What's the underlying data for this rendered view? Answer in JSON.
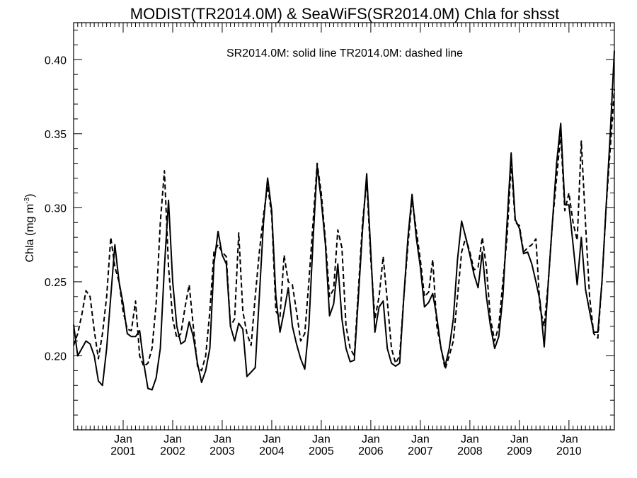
{
  "chart_data": {
    "type": "line",
    "title": "MODIST(TR2014.0M) & SeaWiFS(SR2014.0M)  Chla for shsst",
    "legend_text": "SR2014.0M: solid line   TR2014.0M: dashed line",
    "legend_placement": "top-center",
    "ylabel_main": "Chla (mg m",
    "ylabel_sup": "-3",
    "ylabel_end": ")",
    "xlabel": "",
    "grid": false,
    "x_range": [
      "2000-01",
      "2010-12"
    ],
    "ylim": [
      0.15,
      0.425
    ],
    "y_ticks": [
      {
        "value": 0.2,
        "label": "0.20"
      },
      {
        "value": 0.25,
        "label": "0.25"
      },
      {
        "value": 0.3,
        "label": "0.30"
      },
      {
        "value": 0.35,
        "label": "0.35"
      },
      {
        "value": 0.4,
        "label": "0.40"
      }
    ],
    "x_ticks": [
      {
        "date": "2001-01",
        "month_label": "Jan",
        "year_label": "2001"
      },
      {
        "date": "2002-01",
        "month_label": "Jan",
        "year_label": "2002"
      },
      {
        "date": "2003-01",
        "month_label": "Jan",
        "year_label": "2003"
      },
      {
        "date": "2004-01",
        "month_label": "Jan",
        "year_label": "2004"
      },
      {
        "date": "2005-01",
        "month_label": "Jan",
        "year_label": "2005"
      },
      {
        "date": "2006-01",
        "month_label": "Jan",
        "year_label": "2006"
      },
      {
        "date": "2007-01",
        "month_label": "Jan",
        "year_label": "2007"
      },
      {
        "date": "2008-01",
        "month_label": "Jan",
        "year_label": "2008"
      },
      {
        "date": "2009-01",
        "month_label": "Jan",
        "year_label": "2009"
      },
      {
        "date": "2010-01",
        "month_label": "Jan",
        "year_label": "2010"
      }
    ],
    "series": [
      {
        "key": "SR2014.0M",
        "style": "solid",
        "color": "#000000",
        "points": [
          [
            "2000-01",
            0.221
          ],
          [
            "2000-02",
            0.2
          ],
          [
            "2000-03",
            0.205
          ],
          [
            "2000-04",
            0.21
          ],
          [
            "2000-05",
            0.208
          ],
          [
            "2000-06",
            0.2
          ],
          [
            "2000-07",
            0.183
          ],
          [
            "2000-08",
            0.18
          ],
          [
            "2000-09",
            0.205
          ],
          [
            "2000-10",
            0.24
          ],
          [
            "2000-11",
            0.275
          ],
          [
            "2000-12",
            0.25
          ],
          [
            "2001-01",
            0.235
          ],
          [
            "2001-02",
            0.215
          ],
          [
            "2001-03",
            0.213
          ],
          [
            "2001-04",
            0.213
          ],
          [
            "2001-05",
            0.217
          ],
          [
            "2001-06",
            0.195
          ],
          [
            "2001-07",
            0.178
          ],
          [
            "2001-08",
            0.177
          ],
          [
            "2001-09",
            0.185
          ],
          [
            "2001-10",
            0.205
          ],
          [
            "2001-11",
            0.26
          ],
          [
            "2001-12",
            0.305
          ],
          [
            "2002-01",
            0.25
          ],
          [
            "2002-02",
            0.22
          ],
          [
            "2002-03",
            0.208
          ],
          [
            "2002-04",
            0.21
          ],
          [
            "2002-05",
            0.223
          ],
          [
            "2002-06",
            0.213
          ],
          [
            "2002-07",
            0.195
          ],
          [
            "2002-08",
            0.182
          ],
          [
            "2002-09",
            0.19
          ],
          [
            "2002-10",
            0.205
          ],
          [
            "2002-11",
            0.262
          ],
          [
            "2002-12",
            0.284
          ],
          [
            "2003-01",
            0.268
          ],
          [
            "2003-02",
            0.262
          ],
          [
            "2003-03",
            0.22
          ],
          [
            "2003-04",
            0.21
          ],
          [
            "2003-05",
            0.222
          ],
          [
            "2003-06",
            0.218
          ],
          [
            "2003-07",
            0.186
          ],
          [
            "2003-08",
            0.189
          ],
          [
            "2003-09",
            0.192
          ],
          [
            "2003-10",
            0.24
          ],
          [
            "2003-11",
            0.29
          ],
          [
            "2003-12",
            0.32
          ],
          [
            "2004-01",
            0.298
          ],
          [
            "2004-02",
            0.24
          ],
          [
            "2004-03",
            0.216
          ],
          [
            "2004-04",
            0.23
          ],
          [
            "2004-05",
            0.246
          ],
          [
            "2004-06",
            0.22
          ],
          [
            "2004-07",
            0.208
          ],
          [
            "2004-08",
            0.198
          ],
          [
            "2004-09",
            0.191
          ],
          [
            "2004-10",
            0.22
          ],
          [
            "2004-11",
            0.278
          ],
          [
            "2004-12",
            0.328
          ],
          [
            "2005-01",
            0.305
          ],
          [
            "2005-02",
            0.275
          ],
          [
            "2005-03",
            0.227
          ],
          [
            "2005-04",
            0.235
          ],
          [
            "2005-05",
            0.262
          ],
          [
            "2005-06",
            0.225
          ],
          [
            "2005-07",
            0.205
          ],
          [
            "2005-08",
            0.196
          ],
          [
            "2005-09",
            0.197
          ],
          [
            "2005-10",
            0.24
          ],
          [
            "2005-11",
            0.285
          ],
          [
            "2005-12",
            0.323
          ],
          [
            "2006-01",
            0.27
          ],
          [
            "2006-02",
            0.216
          ],
          [
            "2006-03",
            0.233
          ],
          [
            "2006-04",
            0.237
          ],
          [
            "2006-05",
            0.205
          ],
          [
            "2006-06",
            0.195
          ],
          [
            "2006-07",
            0.193
          ],
          [
            "2006-08",
            0.195
          ],
          [
            "2006-09",
            0.24
          ],
          [
            "2006-10",
            0.28
          ],
          [
            "2006-11",
            0.309
          ],
          [
            "2006-12",
            0.28
          ],
          [
            "2007-01",
            0.26
          ],
          [
            "2007-02",
            0.233
          ],
          [
            "2007-03",
            0.236
          ],
          [
            "2007-04",
            0.242
          ],
          [
            "2007-05",
            0.226
          ],
          [
            "2007-06",
            0.205
          ],
          [
            "2007-07",
            0.193
          ],
          [
            "2007-08",
            0.205
          ],
          [
            "2007-09",
            0.225
          ],
          [
            "2007-10",
            0.265
          ],
          [
            "2007-11",
            0.291
          ],
          [
            "2007-12",
            0.28
          ],
          [
            "2008-01",
            0.268
          ],
          [
            "2008-02",
            0.255
          ],
          [
            "2008-03",
            0.246
          ],
          [
            "2008-04",
            0.27
          ],
          [
            "2008-05",
            0.24
          ],
          [
            "2008-06",
            0.22
          ],
          [
            "2008-07",
            0.205
          ],
          [
            "2008-08",
            0.213
          ],
          [
            "2008-09",
            0.24
          ],
          [
            "2008-10",
            0.29
          ],
          [
            "2008-11",
            0.337
          ],
          [
            "2008-12",
            0.292
          ],
          [
            "2009-01",
            0.286
          ],
          [
            "2009-02",
            0.269
          ],
          [
            "2009-03",
            0.27
          ],
          [
            "2009-04",
            0.262
          ],
          [
            "2009-05",
            0.25
          ],
          [
            "2009-06",
            0.237
          ],
          [
            "2009-07",
            0.206
          ],
          [
            "2009-08",
            0.25
          ],
          [
            "2009-09",
            0.29
          ],
          [
            "2009-10",
            0.33
          ],
          [
            "2009-11",
            0.357
          ],
          [
            "2009-12",
            0.302
          ],
          [
            "2010-01",
            0.302
          ],
          [
            "2010-02",
            0.275
          ],
          [
            "2010-03",
            0.248
          ],
          [
            "2010-04",
            0.28
          ],
          [
            "2010-05",
            0.245
          ],
          [
            "2010-06",
            0.23
          ],
          [
            "2010-07",
            0.216
          ],
          [
            "2010-08",
            0.216
          ],
          [
            "2010-09",
            0.25
          ],
          [
            "2010-10",
            0.3
          ],
          [
            "2010-11",
            0.35
          ],
          [
            "2010-12",
            0.406
          ]
        ]
      },
      {
        "key": "TR2014.0M",
        "style": "dashed",
        "color": "#000000",
        "points": [
          [
            "2000-01",
            0.207
          ],
          [
            "2000-02",
            0.215
          ],
          [
            "2000-03",
            0.228
          ],
          [
            "2000-04",
            0.244
          ],
          [
            "2000-05",
            0.24
          ],
          [
            "2000-06",
            0.217
          ],
          [
            "2000-07",
            0.198
          ],
          [
            "2000-08",
            0.215
          ],
          [
            "2000-09",
            0.24
          ],
          [
            "2000-10",
            0.28
          ],
          [
            "2000-11",
            0.26
          ],
          [
            "2000-12",
            0.25
          ],
          [
            "2001-01",
            0.23
          ],
          [
            "2001-02",
            0.218
          ],
          [
            "2001-03",
            0.217
          ],
          [
            "2001-04",
            0.237
          ],
          [
            "2001-05",
            0.2
          ],
          [
            "2001-06",
            0.193
          ],
          [
            "2001-07",
            0.195
          ],
          [
            "2001-08",
            0.205
          ],
          [
            "2001-09",
            0.235
          ],
          [
            "2001-10",
            0.29
          ],
          [
            "2001-11",
            0.325
          ],
          [
            "2001-12",
            0.26
          ],
          [
            "2002-01",
            0.225
          ],
          [
            "2002-02",
            0.212
          ],
          [
            "2002-03",
            0.215
          ],
          [
            "2002-04",
            0.233
          ],
          [
            "2002-05",
            0.248
          ],
          [
            "2002-06",
            0.22
          ],
          [
            "2002-07",
            0.193
          ],
          [
            "2002-08",
            0.19
          ],
          [
            "2002-09",
            0.2
          ],
          [
            "2002-10",
            0.23
          ],
          [
            "2002-11",
            0.27
          ],
          [
            "2002-12",
            0.275
          ],
          [
            "2003-01",
            0.27
          ],
          [
            "2003-02",
            0.267
          ],
          [
            "2003-03",
            0.22
          ],
          [
            "2003-04",
            0.225
          ],
          [
            "2003-05",
            0.283
          ],
          [
            "2003-06",
            0.23
          ],
          [
            "2003-07",
            0.215
          ],
          [
            "2003-08",
            0.207
          ],
          [
            "2003-09",
            0.24
          ],
          [
            "2003-10",
            0.27
          ],
          [
            "2003-11",
            0.295
          ],
          [
            "2003-12",
            0.315
          ],
          [
            "2004-01",
            0.295
          ],
          [
            "2004-02",
            0.23
          ],
          [
            "2004-03",
            0.226
          ],
          [
            "2004-04",
            0.268
          ],
          [
            "2004-05",
            0.25
          ],
          [
            "2004-06",
            0.248
          ],
          [
            "2004-07",
            0.23
          ],
          [
            "2004-08",
            0.21
          ],
          [
            "2004-09",
            0.215
          ],
          [
            "2004-10",
            0.25
          ],
          [
            "2004-11",
            0.29
          ],
          [
            "2004-12",
            0.33
          ],
          [
            "2005-01",
            0.31
          ],
          [
            "2005-02",
            0.278
          ],
          [
            "2005-03",
            0.24
          ],
          [
            "2005-04",
            0.245
          ],
          [
            "2005-05",
            0.285
          ],
          [
            "2005-06",
            0.273
          ],
          [
            "2005-07",
            0.22
          ],
          [
            "2005-08",
            0.205
          ],
          [
            "2005-09",
            0.2
          ],
          [
            "2005-10",
            0.245
          ],
          [
            "2005-11",
            0.29
          ],
          [
            "2005-12",
            0.318
          ],
          [
            "2006-01",
            0.265
          ],
          [
            "2006-02",
            0.225
          ],
          [
            "2006-03",
            0.24
          ],
          [
            "2006-04",
            0.267
          ],
          [
            "2006-05",
            0.237
          ],
          [
            "2006-06",
            0.205
          ],
          [
            "2006-07",
            0.195
          ],
          [
            "2006-08",
            0.2
          ],
          [
            "2006-09",
            0.24
          ],
          [
            "2006-10",
            0.275
          ],
          [
            "2006-11",
            0.306
          ],
          [
            "2006-12",
            0.285
          ],
          [
            "2007-01",
            0.265
          ],
          [
            "2007-02",
            0.24
          ],
          [
            "2007-03",
            0.243
          ],
          [
            "2007-04",
            0.265
          ],
          [
            "2007-05",
            0.22
          ],
          [
            "2007-06",
            0.205
          ],
          [
            "2007-07",
            0.191
          ],
          [
            "2007-08",
            0.2
          ],
          [
            "2007-09",
            0.21
          ],
          [
            "2007-10",
            0.24
          ],
          [
            "2007-11",
            0.27
          ],
          [
            "2007-12",
            0.28
          ],
          [
            "2008-01",
            0.27
          ],
          [
            "2008-02",
            0.258
          ],
          [
            "2008-03",
            0.26
          ],
          [
            "2008-04",
            0.28
          ],
          [
            "2008-05",
            0.26
          ],
          [
            "2008-06",
            0.225
          ],
          [
            "2008-07",
            0.21
          ],
          [
            "2008-08",
            0.22
          ],
          [
            "2008-09",
            0.25
          ],
          [
            "2008-10",
            0.28
          ],
          [
            "2008-11",
            0.33
          ],
          [
            "2008-12",
            0.29
          ],
          [
            "2009-01",
            0.288
          ],
          [
            "2009-02",
            0.27
          ],
          [
            "2009-03",
            0.273
          ],
          [
            "2009-04",
            0.275
          ],
          [
            "2009-05",
            0.279
          ],
          [
            "2009-06",
            0.232
          ],
          [
            "2009-07",
            0.22
          ],
          [
            "2009-08",
            0.25
          ],
          [
            "2009-09",
            0.29
          ],
          [
            "2009-10",
            0.32
          ],
          [
            "2009-11",
            0.35
          ],
          [
            "2009-12",
            0.298
          ],
          [
            "2010-01",
            0.31
          ],
          [
            "2010-02",
            0.29
          ],
          [
            "2010-03",
            0.278
          ],
          [
            "2010-04",
            0.345
          ],
          [
            "2010-05",
            0.29
          ],
          [
            "2010-06",
            0.24
          ],
          [
            "2010-07",
            0.215
          ],
          [
            "2010-08",
            0.212
          ],
          [
            "2010-09",
            0.25
          ],
          [
            "2010-10",
            0.3
          ],
          [
            "2010-11",
            0.34
          ],
          [
            "2010-12",
            0.38
          ]
        ]
      }
    ]
  }
}
